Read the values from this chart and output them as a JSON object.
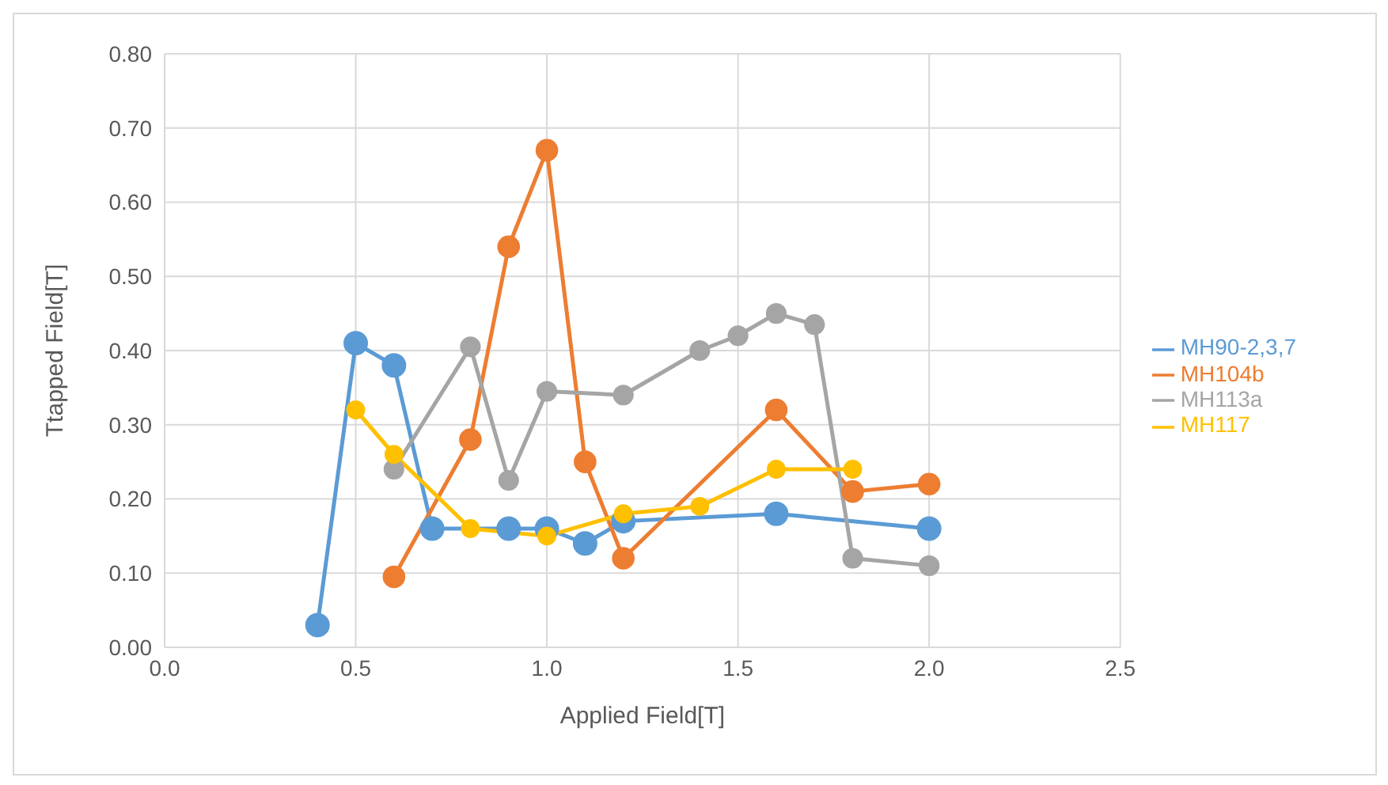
{
  "chart_data": {
    "type": "line",
    "xlabel": "Applied Field[T]",
    "ylabel": "Ttapped  Field[T]",
    "xlim": [
      0,
      2.5
    ],
    "ylim": [
      0,
      0.8
    ],
    "xticks": [
      {
        "value": 0,
        "label": "0.0"
      },
      {
        "value": 0.5,
        "label": "0.5"
      },
      {
        "value": 1,
        "label": "1.0"
      },
      {
        "value": 1.5,
        "label": "1.5"
      },
      {
        "value": 2,
        "label": "2.0"
      },
      {
        "value": 2.5,
        "label": "2.5"
      }
    ],
    "yticks": [
      {
        "value": 0,
        "label": "0.00"
      },
      {
        "value": 0.1,
        "label": "0.10"
      },
      {
        "value": 0.2,
        "label": "0.20"
      },
      {
        "value": 0.3,
        "label": "0.30"
      },
      {
        "value": 0.4,
        "label": "0.40"
      },
      {
        "value": 0.5,
        "label": "0.50"
      },
      {
        "value": 0.6,
        "label": "0.60"
      },
      {
        "value": 0.7,
        "label": "0.70"
      },
      {
        "value": 0.8,
        "label": "0.80"
      }
    ],
    "grid": true,
    "legend": "right",
    "marker": "circle",
    "line_style": "solid",
    "series": [
      {
        "name": "MH90-2,3,7",
        "color": "#5b9bd5",
        "x": [
          0.4,
          0.5,
          0.6,
          0.7,
          0.9,
          1.0,
          1.1,
          1.2,
          1.6,
          2.0
        ],
        "values": [
          0.03,
          0.41,
          0.38,
          0.16,
          0.16,
          0.16,
          0.14,
          0.17,
          0.18,
          0.16
        ]
      },
      {
        "name": "MH104b",
        "color": "#ed7d31",
        "x": [
          0.6,
          0.8,
          0.9,
          1.0,
          1.1,
          1.2,
          1.6,
          1.8,
          2.0
        ],
        "values": [
          0.095,
          0.28,
          0.54,
          0.67,
          0.25,
          0.12,
          0.32,
          0.21,
          0.22
        ]
      },
      {
        "name": "MH113a",
        "color": "#a5a5a5",
        "x": [
          0.6,
          0.8,
          0.9,
          1.0,
          1.2,
          1.4,
          1.5,
          1.6,
          1.7,
          1.8,
          2.0
        ],
        "values": [
          0.24,
          0.405,
          0.225,
          0.345,
          0.34,
          0.4,
          0.42,
          0.45,
          0.435,
          0.12,
          0.11
        ]
      },
      {
        "name": "MH117",
        "color": "#ffc000",
        "x": [
          0.5,
          0.6,
          0.8,
          1.0,
          1.2,
          1.4,
          1.6,
          1.8
        ],
        "values": [
          0.32,
          0.26,
          0.16,
          0.15,
          0.18,
          0.19,
          0.24,
          0.24
        ]
      }
    ]
  }
}
